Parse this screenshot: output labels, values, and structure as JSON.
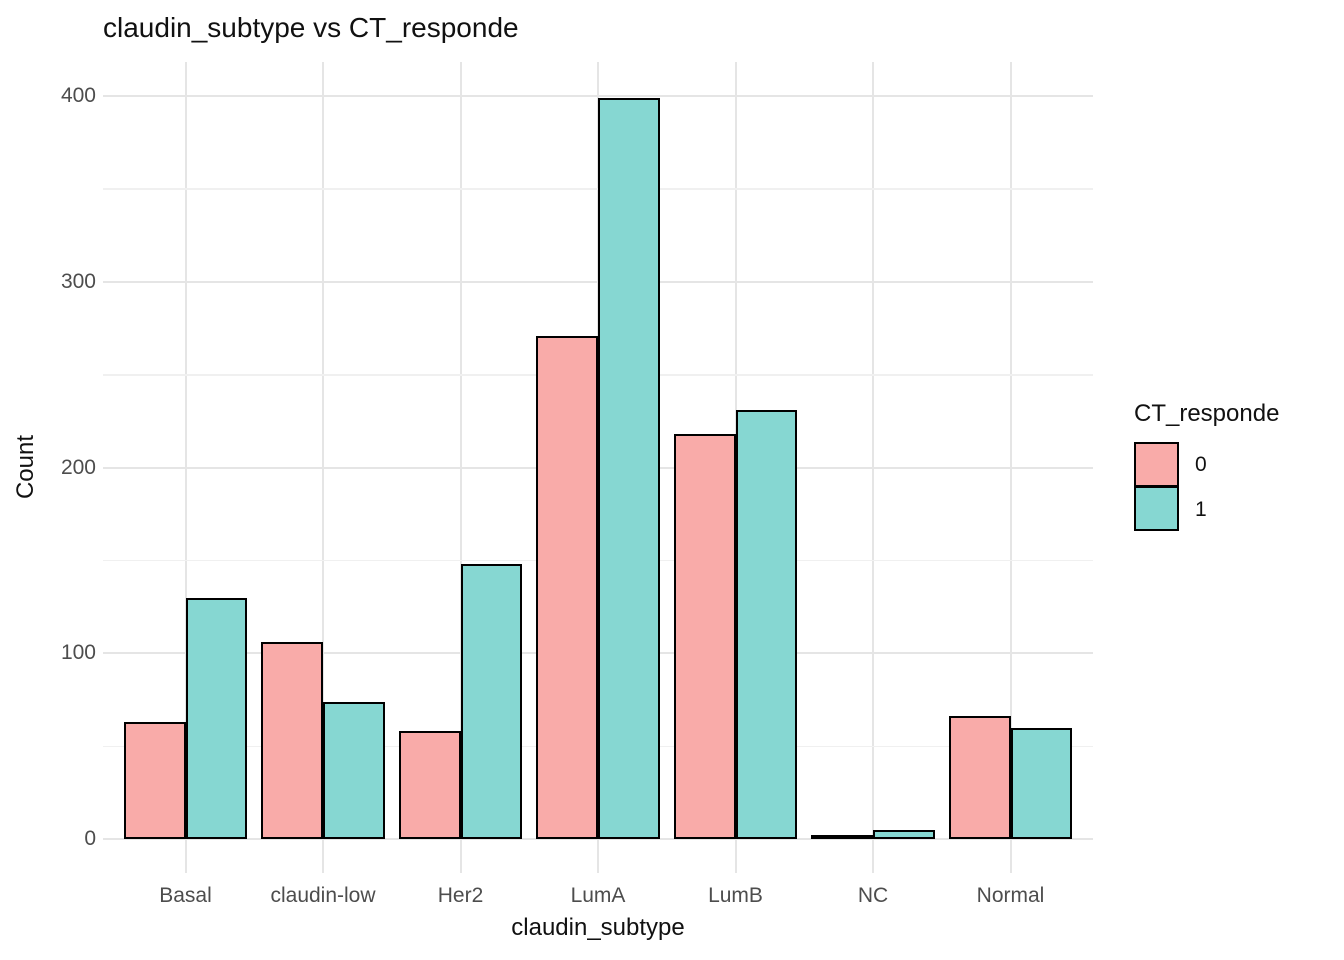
{
  "chart_data": {
    "type": "bar",
    "title": "claudin_subtype vs CT_responde",
    "xlabel": "claudin_subtype",
    "ylabel": "Count",
    "legend_title": "CT_responde",
    "legend_position": "right",
    "categories": [
      "Basal",
      "claudin-low",
      "Her2",
      "LumA",
      "LumB",
      "NC",
      "Normal"
    ],
    "series": [
      {
        "name": "0",
        "color": "#F9ABA9",
        "values": [
          63,
          106,
          58,
          271,
          218,
          1,
          66
        ]
      },
      {
        "name": "1",
        "color": "#86D7D2",
        "values": [
          130,
          74,
          148,
          399,
          231,
          5,
          60
        ]
      }
    ],
    "ylim": [
      0,
      400
    ],
    "y_major_ticks": [
      0,
      100,
      200,
      300,
      400
    ],
    "y_minor_ticks": [
      50,
      150,
      250,
      350
    ],
    "grid": "on",
    "bar_border_color": "#000000",
    "colors": {
      "grid_major": "#E5E5E5",
      "grid_minor": "#F0F0F0",
      "axis_text": "#4D4D4D",
      "title_text": "#111111",
      "background": "#FFFFFF"
    }
  }
}
